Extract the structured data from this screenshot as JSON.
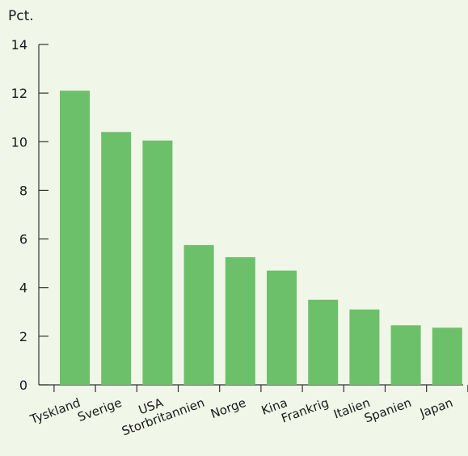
{
  "chart_data": {
    "type": "bar",
    "title": "",
    "xlabel": "",
    "ylabel": "Pct.",
    "categories": [
      "Tyskland",
      "Sverige",
      "USA",
      "Storbritannien",
      "Norge",
      "Kina",
      "Frankrig",
      "Italien",
      "Spanien",
      "Japan"
    ],
    "values": [
      12.1,
      10.4,
      10.05,
      5.75,
      5.25,
      4.7,
      3.5,
      3.1,
      2.45,
      2.35
    ],
    "ylim": [
      0,
      14
    ],
    "yticks": [
      "0",
      "2",
      "4",
      "6",
      "8",
      "10",
      "12",
      "14"
    ],
    "grid": false,
    "legend": "none",
    "colors": {
      "bar": "#6cc06a",
      "axis": "#333333",
      "text": "#1a1a1a",
      "background": "#f0f6e8"
    }
  }
}
